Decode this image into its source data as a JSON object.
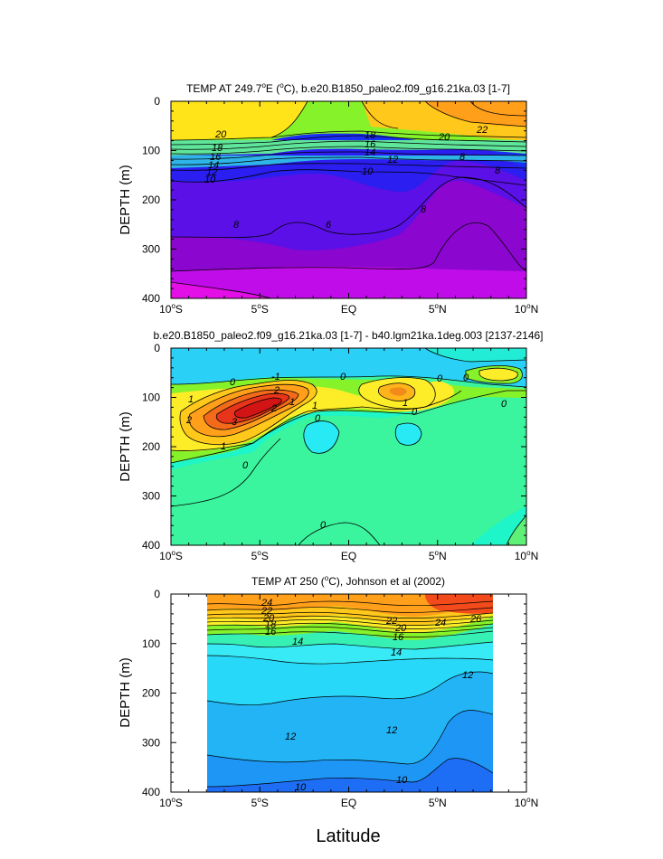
{
  "chart_data": [
    {
      "type": "contour",
      "title": "TEMP AT 249.7°E (°C), b.e20.B1850_paleo2.f09_g16.21ka.03 [1-7]",
      "title_parts": {
        "pre": "TEMP AT 249.7",
        "sup1": "o",
        "mid": "E (",
        "sup2": "o",
        "post": "C), b.e20.B1850_paleo2.f09_g16.21ka.03 [1-7]"
      },
      "ylabel": "DEPTH (m)",
      "xlim": [
        -10,
        10
      ],
      "ylim": [
        0,
        400
      ],
      "xticks": [
        "10°S",
        "5°S",
        "EQ",
        "5°N",
        "10°N"
      ],
      "yticks": [
        "0",
        "100",
        "200",
        "300",
        "400"
      ],
      "contour_labels": [
        "20",
        "18",
        "16",
        "14",
        "12",
        "10",
        "8",
        "6",
        "20",
        "22",
        "18",
        "16",
        "14",
        "12",
        "10",
        "8",
        "8",
        "8"
      ]
    },
    {
      "type": "contour",
      "title": "b.e20.B1850_paleo2.f09_g16.21ka.03 [1-7] - b40.lgm21ka.1deg.003 [2137-2146]",
      "ylabel": "DEPTH (m)",
      "xlim": [
        -10,
        10
      ],
      "ylim": [
        0,
        400
      ],
      "xticks": [
        "10°S",
        "5°S",
        "EQ",
        "5°N",
        "10°N"
      ],
      "yticks": [
        "0",
        "100",
        "200",
        "300",
        "400"
      ],
      "contour_labels": [
        "0",
        "-1",
        "0",
        "0",
        "0",
        "1",
        "1",
        "2",
        "2",
        "3",
        "2",
        "1",
        "1",
        "0",
        "0",
        "0",
        "0",
        "1",
        "0"
      ]
    },
    {
      "type": "contour",
      "title": "TEMP AT 250 (°C), Johnson et al (2002)",
      "title_parts": {
        "pre": "TEMP AT 250 (",
        "sup1": "o",
        "post": "C), Johnson et al (2002)"
      },
      "ylabel": "DEPTH (m)",
      "xlabel": "Latitude",
      "xlim": [
        -10,
        10
      ],
      "ylim": [
        0,
        400
      ],
      "xticks": [
        "10°S",
        "5°S",
        "EQ",
        "5°N",
        "10°N"
      ],
      "yticks": [
        "0",
        "100",
        "200",
        "300",
        "400"
      ],
      "data_extent_lat": [
        -8,
        8
      ],
      "contour_labels": [
        "24",
        "22",
        "20",
        "18",
        "16",
        "22",
        "20",
        "16",
        "24",
        "26",
        "14",
        "14",
        "12",
        "12",
        "12",
        "10",
        "10"
      ]
    }
  ]
}
